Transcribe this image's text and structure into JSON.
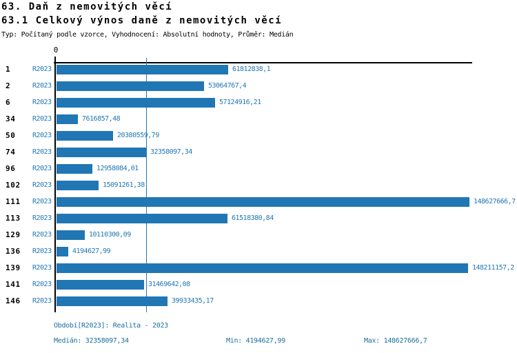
{
  "title": "63. Daň z nemovitých věcí",
  "subtitle": "63.1 Celkový výnos daně z nemovitých věcí",
  "meta_line": "Typ: Počítaný podle vzorce, Vyhodnocení: Absolutní hodnoty, Průměr: Medián",
  "colors": {
    "bar": "#2176b4",
    "text_blue": "#1f77b4",
    "footer_text": "#1a6f9b",
    "axis": "#000000",
    "background": "#ffffff"
  },
  "chart_data": {
    "type": "bar",
    "orientation": "horizontal",
    "categories": [
      "1",
      "2",
      "6",
      "34",
      "50",
      "74",
      "96",
      "102",
      "111",
      "113",
      "129",
      "136",
      "139",
      "141",
      "146"
    ],
    "series_label": "R2023",
    "values": [
      61812838.1,
      53064767.4,
      57124916.21,
      7616857.48,
      20380559.79,
      32358097.34,
      12958084.01,
      15091261.38,
      148627666.7,
      61518380.84,
      10110300.09,
      4194627.99,
      148211157.2,
      31469642.08,
      39933435.17
    ],
    "value_labels": [
      "61812838,1",
      "53064767,4",
      "57124916,21",
      "7616857,48",
      "20380559,79",
      "32358097,34",
      "12958084,01",
      "15091261,38",
      "148627666,7",
      "61518380,84",
      "10110300,09",
      "4194627,99",
      "148211157,2",
      "31469642,08",
      "39933435,17"
    ],
    "x_axis": {
      "zero_label": "0",
      "min": 0,
      "max": 148627666.7
    },
    "median_value": 32358097.34,
    "grid": "median-line-only",
    "legend_position": "none"
  },
  "footer": {
    "period": "Období[R2023]: Realita - 2023",
    "median": "Medián: 32358097,34",
    "min": "Min: 4194627,99",
    "max": "Max: 148627666,7"
  }
}
